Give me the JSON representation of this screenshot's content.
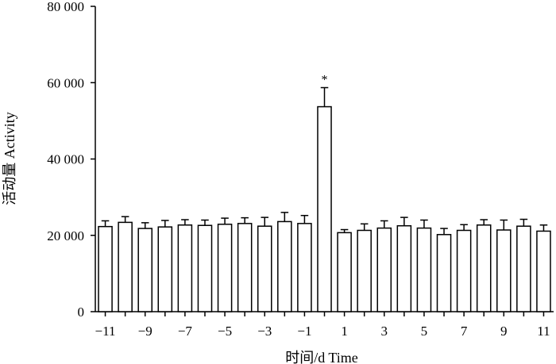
{
  "chart_data": {
    "type": "bar",
    "xlabel": "时间/d Time",
    "ylabel": "活动量 Activity",
    "ylim": [
      0,
      80000
    ],
    "yticks": [
      0,
      20000,
      40000,
      60000,
      80000
    ],
    "ytick_labels": [
      "0",
      "20 000",
      "40 000",
      "60 000",
      "80 000"
    ],
    "x": [
      -11,
      -10,
      -9,
      -8,
      -7,
      -6,
      -5,
      -4,
      -3,
      -2,
      -1,
      0,
      1,
      2,
      3,
      4,
      5,
      6,
      7,
      8,
      9,
      10,
      11
    ],
    "xtick_labels": [
      {
        "x": -11,
        "label": "−11"
      },
      {
        "x": -9,
        "label": "−9"
      },
      {
        "x": -7,
        "label": "−7"
      },
      {
        "x": -5,
        "label": "−5"
      },
      {
        "x": -3,
        "label": "−3"
      },
      {
        "x": -1,
        "label": "−1"
      },
      {
        "x": 1,
        "label": "1"
      },
      {
        "x": 3,
        "label": "3"
      },
      {
        "x": 5,
        "label": "5"
      },
      {
        "x": 7,
        "label": "7"
      },
      {
        "x": 9,
        "label": "9"
      },
      {
        "x": 11,
        "label": "11"
      }
    ],
    "values": [
      22300,
      23400,
      21800,
      22200,
      22700,
      22600,
      22900,
      23100,
      22400,
      23600,
      23100,
      53700,
      20700,
      21300,
      21900,
      22500,
      21900,
      20200,
      21300,
      22700,
      21400,
      22400,
      21100
    ],
    "errors": [
      1500,
      1500,
      1500,
      1700,
      1400,
      1400,
      1600,
      1500,
      2300,
      2400,
      2100,
      5000,
      800,
      1700,
      1900,
      2200,
      2100,
      1600,
      1500,
      1400,
      2600,
      1800,
      1600
    ],
    "annotations": [
      {
        "x": 0,
        "text": "*"
      }
    ],
    "bar_fill": "#ffffff",
    "bar_stroke": "#000000",
    "grid": false
  }
}
